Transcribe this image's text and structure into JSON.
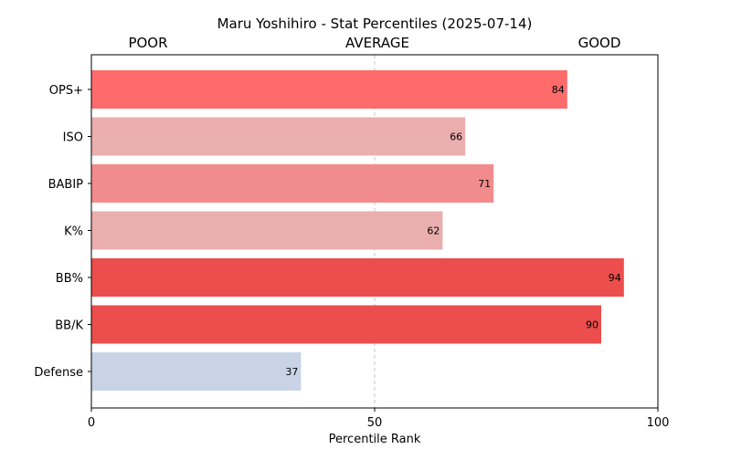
{
  "chart_data": {
    "type": "bar",
    "orientation": "horizontal",
    "title": "Maru Yoshihiro - Stat Percentiles (2025-07-14)",
    "xlabel": "Percentile Rank",
    "ylabel": "",
    "xlim": [
      0,
      100
    ],
    "x_ticks": [
      0,
      50,
      100
    ],
    "reference_line": 50,
    "zone_labels": [
      "POOR",
      "AVERAGE",
      "GOOD"
    ],
    "grid": false,
    "legend": "none",
    "categories": [
      "OPS+",
      "ISO",
      "BABIP",
      "K%",
      "BB%",
      "BB/K",
      "Defense"
    ],
    "values": [
      84,
      66,
      71,
      62,
      94,
      90,
      37
    ],
    "bar_colors": [
      "#ff6b6b",
      "#ebaeae",
      "#f28c8c",
      "#ebaeae",
      "#ec4d4d",
      "#ec4d4d",
      "#c8d4e6"
    ]
  }
}
